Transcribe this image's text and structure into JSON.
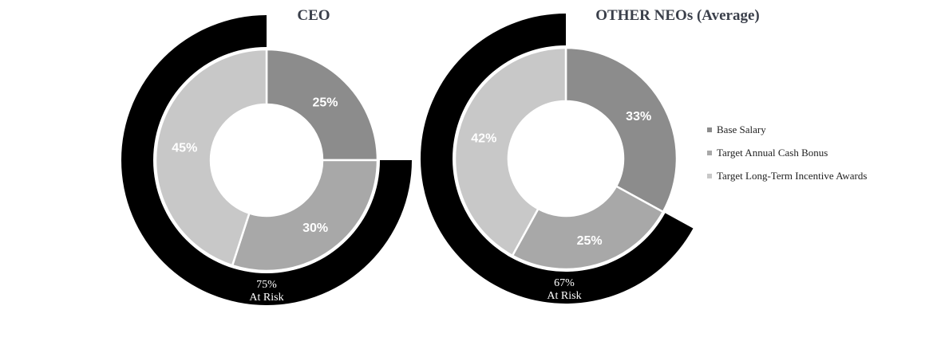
{
  "colors": {
    "base_salary": "#8c8c8c",
    "target_annual_cash_bonus": "#a8a8a8",
    "target_long_term_incentive": "#c8c8c8",
    "at_risk_band": "#000000",
    "slice_border": "#ffffff"
  },
  "legend": [
    {
      "label": "Base Salary",
      "color": "#8c8c8c"
    },
    {
      "label": "Target Annual Cash Bonus",
      "color": "#a8a8a8"
    },
    {
      "label": "Target Long-Term Incentive Awards",
      "color": "#c8c8c8"
    }
  ],
  "chart_data": [
    {
      "type": "pie",
      "subtype": "donut",
      "title": "CEO",
      "categories": [
        "Base Salary",
        "Target Annual Cash Bonus",
        "Target Long-Term Incentive Awards"
      ],
      "values": [
        25,
        30,
        45
      ],
      "value_labels": [
        "25%",
        "30%",
        "45%"
      ],
      "at_risk": {
        "value": 75,
        "percent_label": "75%",
        "text": "At Risk"
      }
    },
    {
      "type": "pie",
      "subtype": "donut",
      "title": "OTHER NEOs (Average)",
      "categories": [
        "Base Salary",
        "Target Annual Cash Bonus",
        "Target Long-Term Incentive Awards"
      ],
      "values": [
        33,
        25,
        42
      ],
      "value_labels": [
        "33%",
        "25%",
        "42%"
      ],
      "at_risk": {
        "value": 67,
        "percent_label": "67%",
        "text": "At Risk"
      }
    }
  ]
}
